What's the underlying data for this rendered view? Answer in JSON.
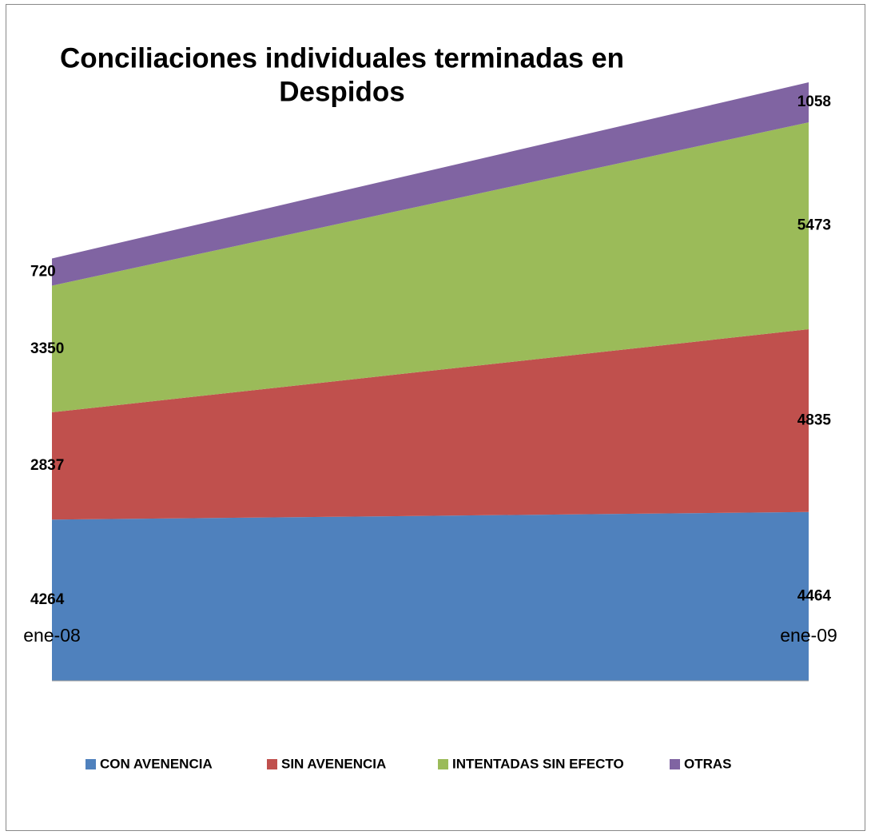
{
  "chart_data": {
    "type": "area",
    "title": [
      "Conciliaciones individuales terminadas en",
      "Despidos"
    ],
    "categories": [
      "ene-08",
      "ene-09"
    ],
    "series": [
      {
        "name": "CON AVENENCIA",
        "color": "#4f81bd",
        "values": [
          4264,
          4464
        ]
      },
      {
        "name": "SIN AVENENCIA",
        "color": "#c0504d",
        "values": [
          2837,
          4835
        ]
      },
      {
        "name": "INTENTADAS SIN EFECTO",
        "color": "#9bbb59",
        "values": [
          3350,
          5473
        ]
      },
      {
        "name": "OTRAS",
        "color": "#8064a2",
        "values": [
          720,
          1058
        ]
      }
    ],
    "ylim": [
      0,
      16000
    ],
    "stacked": true,
    "legend": "bottom"
  }
}
